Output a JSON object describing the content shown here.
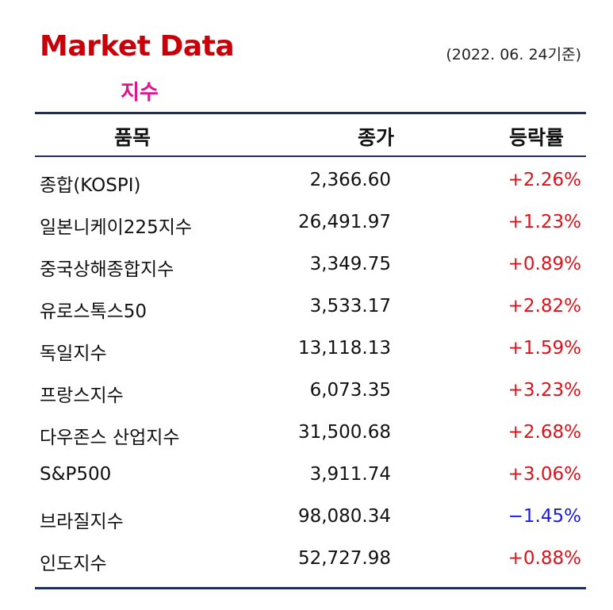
{
  "header": {
    "title": "Market Data",
    "date": "(2022. 06. 24기준)",
    "subtitle": "지수"
  },
  "table": {
    "columns": [
      "품목",
      "종가",
      "등락률"
    ],
    "rows": [
      {
        "name": "종합(KOSPI)",
        "close": "2,366.60",
        "change": "+2.26%"
      },
      {
        "name": "일본니케이225지수",
        "close": "26,491.97",
        "change": "+1.23%"
      },
      {
        "name": "중국상해종합지수",
        "close": "3,349.75",
        "change": "+0.89%"
      },
      {
        "name": "유로스톡스50",
        "close": "3,533.17",
        "change": "+2.82%"
      },
      {
        "name": "독일지수",
        "close": "13,118.13",
        "change": "+1.59%"
      },
      {
        "name": "프랑스지수",
        "close": "6,073.35",
        "change": "+3.23%"
      },
      {
        "name": "다우존스 산업지수",
        "close": "31,500.68",
        "change": "+2.68%"
      },
      {
        "name": "S&P500",
        "close": "3,911.74",
        "change": "+3.06%"
      },
      {
        "name": "브라질지수",
        "close": "98,080.34",
        "change": "−1.45%"
      },
      {
        "name": "인도지수",
        "close": "52,727.98",
        "change": "+0.88%"
      }
    ]
  },
  "colors": {
    "title": "#c8000a",
    "subtitle": "#e0158e",
    "rule": "#1f2f5c",
    "positive": "#e0101a",
    "negative": "#1a1ae6"
  }
}
